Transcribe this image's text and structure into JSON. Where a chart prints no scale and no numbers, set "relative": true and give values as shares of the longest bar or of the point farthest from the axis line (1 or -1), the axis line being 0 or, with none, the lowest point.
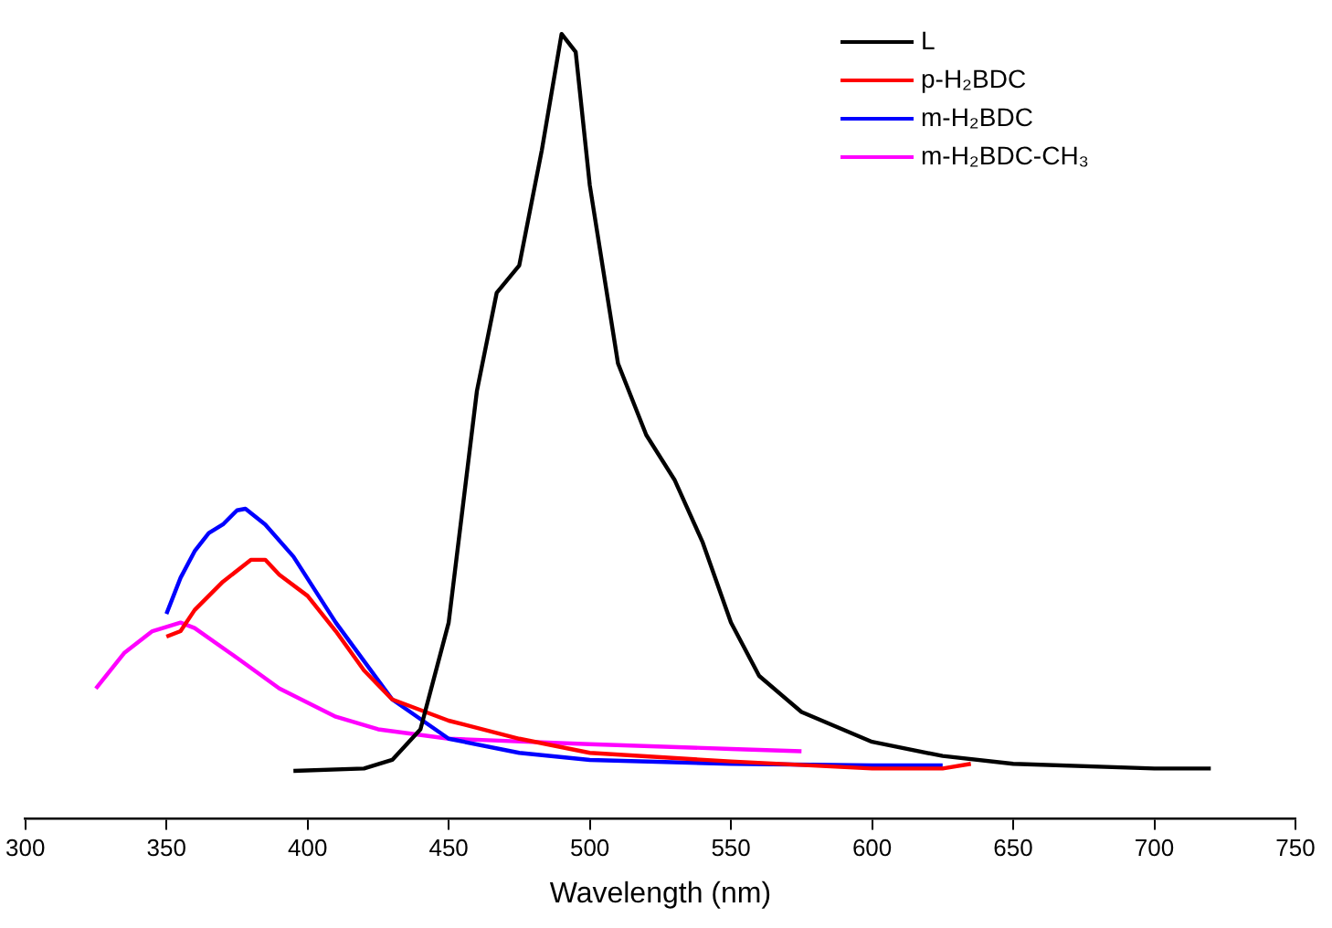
{
  "chart_data": {
    "type": "line",
    "xlabel": "Wavelength (nm)",
    "relative": true,
    "xlim": [
      300,
      750
    ],
    "xticks": [
      300,
      350,
      400,
      450,
      500,
      550,
      600,
      650,
      700,
      750
    ],
    "grid": false,
    "legend": "top right",
    "marker": "none",
    "line_style": "solid",
    "series": [
      {
        "name": "L",
        "color": "#000000",
        "x": [
          395,
          420,
          430,
          440,
          450,
          460,
          467,
          475,
          483,
          490,
          495,
          500,
          510,
          520,
          530,
          540,
          550,
          560,
          575,
          600,
          625,
          650,
          700,
          720
        ],
        "values": [
          0.061,
          0.064,
          0.075,
          0.114,
          0.25,
          0.545,
          0.67,
          0.705,
          0.852,
          1,
          0.977,
          0.807,
          0.58,
          0.489,
          0.432,
          0.352,
          0.25,
          0.182,
          0.136,
          0.098,
          0.08,
          0.07,
          0.064,
          0.064
        ]
      },
      {
        "name": "p-H₂BDC",
        "color": "#ff0000",
        "x": [
          350,
          355,
          360,
          370,
          380,
          385,
          390,
          400,
          410,
          420,
          430,
          450,
          475,
          500,
          550,
          600,
          625,
          635
        ],
        "values": [
          0.232,
          0.239,
          0.266,
          0.302,
          0.33,
          0.33,
          0.311,
          0.284,
          0.239,
          0.189,
          0.152,
          0.125,
          0.102,
          0.084,
          0.073,
          0.064,
          0.064,
          0.07
        ]
      },
      {
        "name": "m-H₂BDC",
        "color": "#0000ff",
        "x": [
          350,
          355,
          360,
          365,
          370,
          375,
          378,
          385,
          395,
          410,
          430,
          450,
          475,
          500,
          550,
          600,
          625
        ],
        "values": [
          0.261,
          0.307,
          0.341,
          0.364,
          0.375,
          0.393,
          0.395,
          0.375,
          0.334,
          0.25,
          0.152,
          0.102,
          0.084,
          0.075,
          0.07,
          0.068,
          0.068
        ]
      },
      {
        "name": "m-H₂BDC-CH₃",
        "color": "#ff00ff",
        "x": [
          325,
          335,
          345,
          355,
          360,
          375,
          390,
          410,
          425,
          450,
          500,
          550,
          575
        ],
        "values": [
          0.166,
          0.211,
          0.239,
          0.25,
          0.243,
          0.205,
          0.166,
          0.13,
          0.114,
          0.102,
          0.095,
          0.089,
          0.086
        ]
      }
    ]
  }
}
